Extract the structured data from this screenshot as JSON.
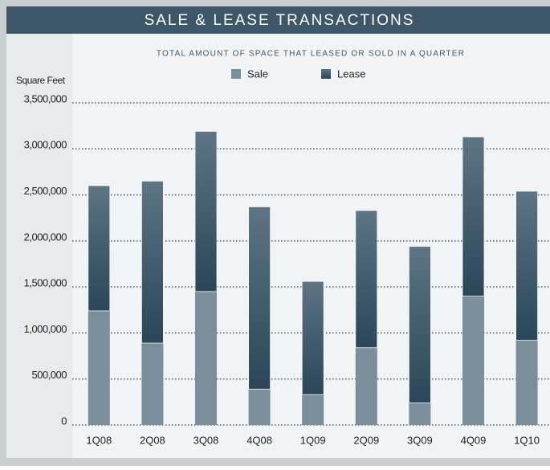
{
  "chart_data": {
    "type": "stacked_bar",
    "title": "SALE & LEASE TRANSACTIONS",
    "subtitle": "TOTAL AMOUNT OF SPACE THAT LEASED OR SOLD IN A QUARTER",
    "y_label": "Square Feet",
    "categories": [
      "1Q08",
      "2Q08",
      "3Q08",
      "4Q08",
      "1Q09",
      "2Q09",
      "3Q09",
      "4Q09",
      "1Q10"
    ],
    "series": [
      {
        "name": "Sale",
        "color": "#7b8e9b",
        "values": [
          1240000,
          890000,
          1450000,
          390000,
          330000,
          840000,
          240000,
          1400000,
          920000
        ]
      },
      {
        "name": "Lease",
        "color": "#2a4658",
        "values": [
          1360000,
          1760000,
          1740000,
          1980000,
          1230000,
          1490000,
          1700000,
          1730000,
          1620000
        ]
      }
    ],
    "ylim": [
      0,
      3500000
    ],
    "yticks": [
      {
        "value": 0,
        "label": "0"
      },
      {
        "value": 500000,
        "label": "500,000"
      },
      {
        "value": 1000000,
        "label": "1,000,000"
      },
      {
        "value": 1500000,
        "label": "1,500,000"
      },
      {
        "value": 2000000,
        "label": "2,000,000"
      },
      {
        "value": 2500000,
        "label": "2,500,000"
      },
      {
        "value": 3000000,
        "label": "3,000,000"
      },
      {
        "value": 3500000,
        "label": "3,500,000"
      }
    ],
    "grid": true
  }
}
